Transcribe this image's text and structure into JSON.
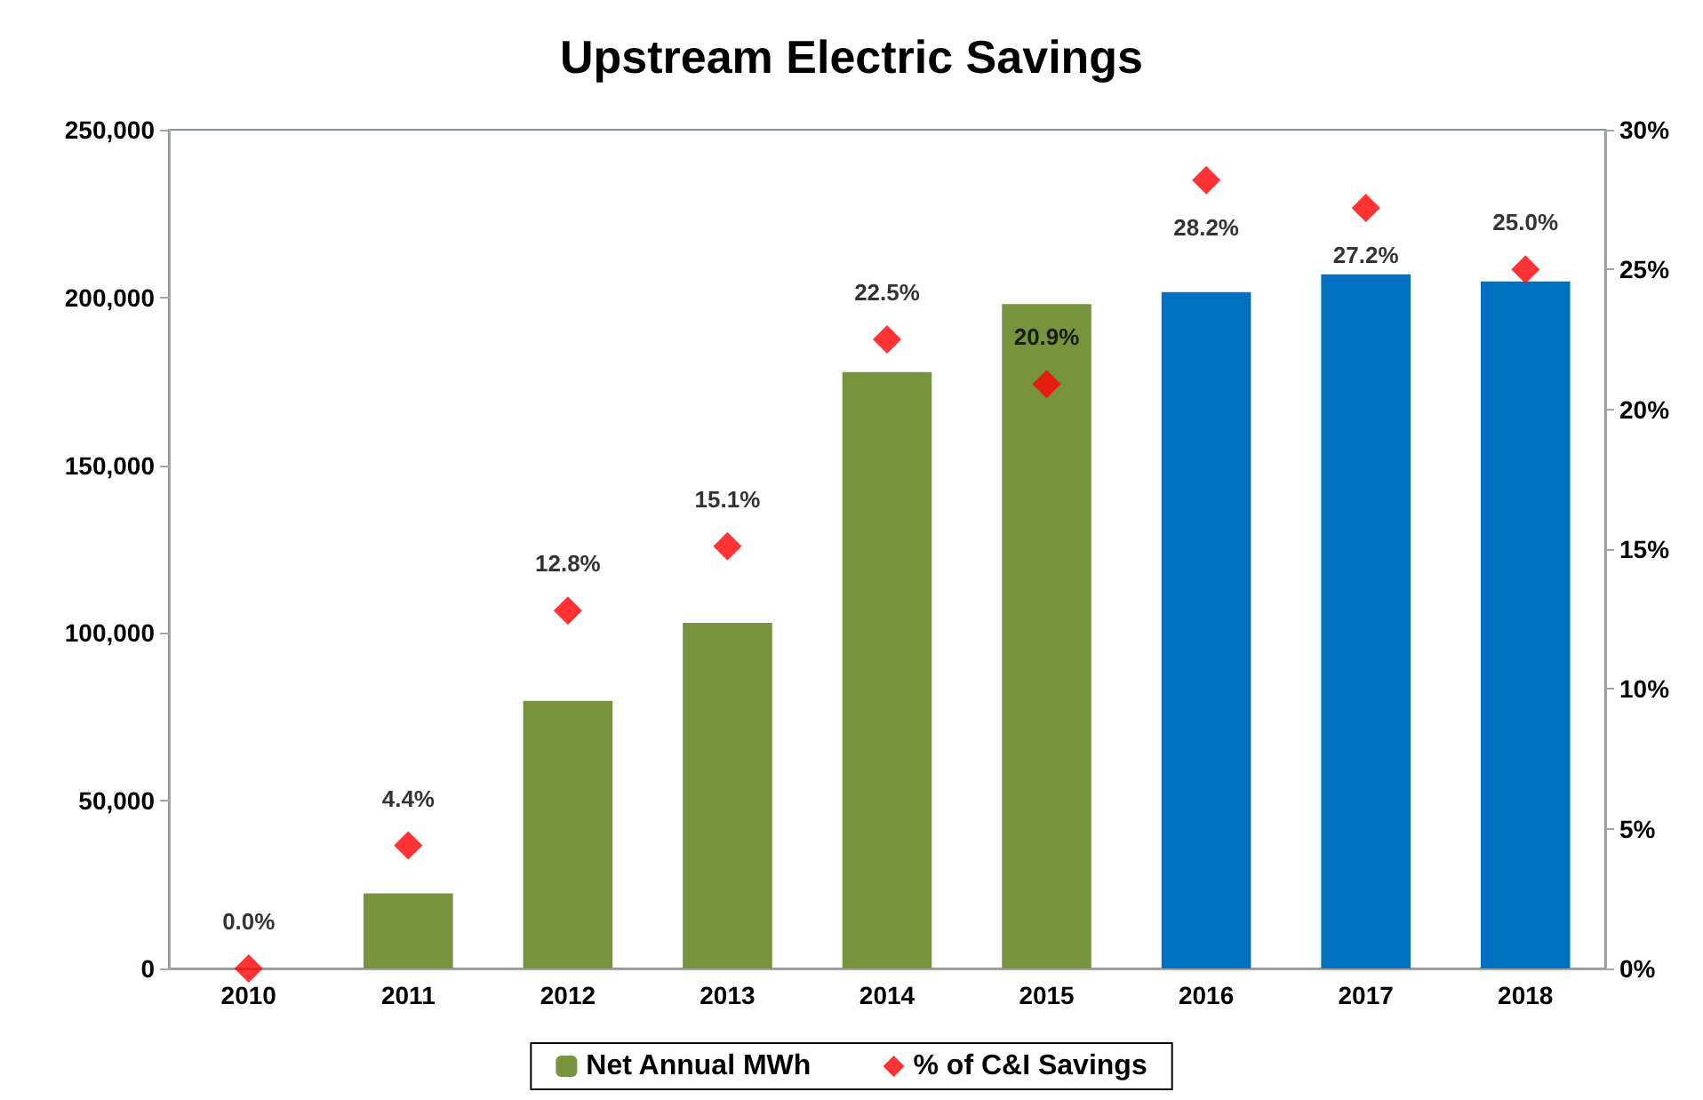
{
  "chart_data": {
    "type": "bar",
    "title": "Upstream Electric Savings",
    "categories": [
      "2010",
      "2011",
      "2012",
      "2013",
      "2014",
      "2015",
      "2016",
      "2017",
      "2018"
    ],
    "series": [
      {
        "name": "Net Annual MWh",
        "color": "#77933c",
        "colors": [
          "#77933c",
          "#77933c",
          "#77933c",
          "#77933c",
          "#77933c",
          "#77933c",
          "#0070c0",
          "#0070c0",
          "#0070c0"
        ],
        "values": [
          0,
          22400,
          79800,
          103000,
          177800,
          198000,
          201600,
          206900,
          204800
        ]
      },
      {
        "name": "% of C&I Savings",
        "type": "scatter",
        "axis": "y2",
        "color": "#ff0000",
        "marker": "diamond",
        "values": [
          0.0,
          4.4,
          12.8,
          15.1,
          22.5,
          20.9,
          28.2,
          27.2,
          25.0
        ],
        "value_labels": [
          "0.0%",
          "4.4%",
          "12.8%",
          "15.1%",
          "22.5%",
          "20.9%",
          "28.2%",
          "27.2%",
          "25.0%"
        ]
      }
    ],
    "ylim": [
      0,
      250000
    ],
    "yticks": [
      {
        "value": 0,
        "label": "0"
      },
      {
        "value": 50000,
        "label": "50,000"
      },
      {
        "value": 100000,
        "label": "100,000"
      },
      {
        "value": 150000,
        "label": "150,000"
      },
      {
        "value": 200000,
        "label": "200,000"
      },
      {
        "value": 250000,
        "label": "250,000"
      }
    ],
    "y2lim": [
      0,
      30
    ],
    "y2ticks": [
      {
        "value": 0,
        "label": "0%"
      },
      {
        "value": 5,
        "label": "5%"
      },
      {
        "value": 10,
        "label": "10%"
      },
      {
        "value": 15,
        "label": "15%"
      },
      {
        "value": 20,
        "label": "20%"
      },
      {
        "value": 25,
        "label": "25%"
      },
      {
        "value": 30,
        "label": "30%"
      }
    ],
    "grid": false,
    "legend": "bottom"
  }
}
